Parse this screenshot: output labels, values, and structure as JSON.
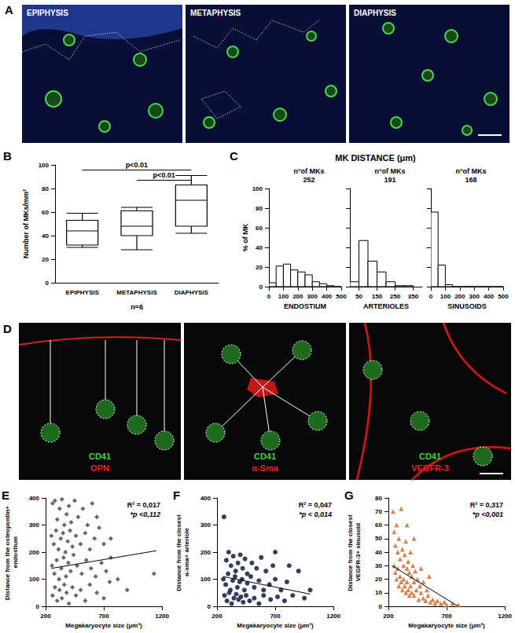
{
  "images": [
    {
      "panel": "A",
      "frames": [
        {
          "label": "EPIPHYSIS"
        },
        {
          "label": "METAPHYSIS"
        },
        {
          "label": "DIAPHYSIS"
        }
      ]
    },
    {
      "panel": "D",
      "frames": [
        {
          "label": "CD41",
          "stain": "OPN"
        },
        {
          "label": "CD41",
          "stain": "α-Sma"
        },
        {
          "label": "CD41",
          "stain": "VEGFR-3"
        }
      ]
    }
  ],
  "chart_data": [
    {
      "panel": "B",
      "type": "boxplot",
      "categories": [
        "EPIPHYSIS",
        "METAPHYSIS",
        "DIAPHYSIS"
      ],
      "values": [
        [
          30,
          32,
          44,
          53,
          59
        ],
        [
          28,
          40,
          48,
          61,
          64
        ],
        [
          42,
          48,
          70,
          83,
          91
        ]
      ],
      "color": "#000000",
      "y_label": "Number of MKs/mm²",
      "x_label": "n=6",
      "ylim": [
        0,
        100
      ],
      "yticks": [
        0,
        20,
        40,
        60,
        80,
        100
      ],
      "grid": false,
      "annotations": [
        {
          "text": "p<0.01",
          "from": "EPIPHYSIS",
          "to": "DIAPHYSIS",
          "y": 96
        },
        {
          "text": "p<0.01",
          "from": "METAPHYSIS",
          "to": "DIAPHYSIS",
          "y": 87
        }
      ]
    },
    {
      "panel": "C",
      "type": "histogram",
      "title": "MK DISTANCE (μm)",
      "y_label": "% of MK",
      "ylim": [
        0,
        100
      ],
      "yticks": [
        0,
        20,
        40,
        60,
        80,
        100
      ],
      "grid": false,
      "color": "#ffffff",
      "series": [
        {
          "name": "ENDOSTIUM",
          "count_label": "n°of MKs",
          "count": 252,
          "bins": [
            0,
            50,
            100,
            150,
            200,
            250,
            300,
            350,
            400,
            450,
            500
          ],
          "values": [
            4,
            21,
            23,
            17,
            15,
            12,
            5,
            3,
            1,
            0
          ],
          "xlim": [
            0,
            500
          ],
          "xticks": [
            0,
            100,
            200,
            300,
            400,
            500
          ]
        },
        {
          "name": "ARTERIOLES",
          "count_label": "n°of MKs",
          "count": 191,
          "bins": [
            0,
            50,
            100,
            150,
            200,
            250,
            300,
            350
          ],
          "values": [
            5,
            47,
            26,
            15,
            5,
            1,
            1
          ],
          "xlim": [
            0,
            400
          ],
          "xticks": [
            50,
            150,
            250,
            350
          ]
        },
        {
          "name": "SINUSOIDS",
          "count_label": "n°of MKs",
          "count": 168,
          "bins": [
            0,
            50,
            100,
            150,
            200,
            250,
            300,
            350,
            400,
            450,
            500
          ],
          "values": [
            76,
            22,
            2,
            0,
            0,
            0,
            0,
            0,
            0,
            0
          ],
          "xlim": [
            0,
            500
          ],
          "xticks": [
            0,
            100,
            200,
            300,
            400,
            500
          ]
        }
      ]
    },
    {
      "panel": "E",
      "type": "scatter",
      "marker": "diamond",
      "color": "#5a5a5a",
      "x_label": "Megakaryocyte size (μm²)",
      "y_label": "Distance from the osteopontin+ endostium",
      "xlim": [
        200,
        1200
      ],
      "xticks": [
        200,
        700,
        1200
      ],
      "ylim": [
        0,
        400
      ],
      "yticks": [
        0,
        100,
        200,
        300,
        400
      ],
      "grid": false,
      "annotations": [
        {
          "text": "R² = 0,017"
        },
        {
          "text": "*p <0,112"
        }
      ],
      "trend": {
        "x": [
          250,
          1150
        ],
        "y": [
          140,
          205
        ]
      },
      "x": [
        260,
        280,
        300,
        320,
        340,
        360,
        380,
        400,
        420,
        450,
        480,
        520,
        560,
        600,
        640,
        250,
        270,
        290,
        310,
        330,
        350,
        370,
        390,
        410,
        430,
        460,
        500,
        540,
        580,
        620,
        660,
        700,
        255,
        275,
        295,
        315,
        335,
        355,
        375,
        395,
        415,
        440,
        470,
        510,
        550,
        590,
        630,
        680,
        720,
        760,
        260,
        280,
        300,
        320,
        340,
        360,
        380,
        400,
        430,
        460,
        500,
        540,
        580,
        640,
        700,
        750,
        820,
        900,
        1130,
        760
      ],
      "values": [
        380,
        390,
        320,
        360,
        395,
        300,
        340,
        370,
        310,
        390,
        330,
        360,
        300,
        380,
        330,
        260,
        230,
        280,
        210,
        250,
        270,
        200,
        240,
        280,
        220,
        260,
        230,
        270,
        210,
        250,
        290,
        230,
        150,
        120,
        170,
        100,
        140,
        180,
        110,
        160,
        130,
        190,
        150,
        120,
        170,
        140,
        110,
        160,
        130,
        180,
        40,
        70,
        20,
        60,
        30,
        80,
        50,
        10,
        70,
        40,
        60,
        20,
        80,
        50,
        30,
        90,
        100,
        60,
        120,
        250
      ]
    },
    {
      "panel": "F",
      "type": "scatter",
      "marker": "circle",
      "color": "#1c2a4a",
      "x_label": "Megakaryocyte size (μm²)",
      "y_label": "Distance from the closest α-sma+ arteriole",
      "xlim": [
        200,
        1200
      ],
      "xticks": [
        200,
        700,
        1200
      ],
      "ylim": [
        0,
        400
      ],
      "yticks": [
        0,
        100,
        200,
        300,
        400
      ],
      "grid": false,
      "annotations": [
        {
          "text": "R² = 0,047"
        },
        {
          "text": "*p < 0,014"
        }
      ],
      "trend": {
        "x": [
          250,
          1000
        ],
        "y": [
          110,
          45
        ]
      },
      "x": [
        260,
        280,
        300,
        320,
        340,
        360,
        380,
        400,
        420,
        440,
        460,
        500,
        540,
        580,
        620,
        680,
        255,
        275,
        295,
        315,
        335,
        355,
        375,
        395,
        415,
        435,
        460,
        490,
        520,
        560,
        600,
        650,
        700,
        750,
        800,
        265,
        285,
        305,
        325,
        345,
        365,
        385,
        405,
        425,
        450,
        480,
        520,
        560,
        600,
        660,
        720,
        780,
        850,
        900,
        950,
        1000,
        820,
        700
      ],
      "values": [
        330,
        170,
        200,
        150,
        185,
        130,
        160,
        190,
        140,
        175,
        120,
        160,
        140,
        180,
        130,
        150,
        100,
        80,
        120,
        60,
        95,
        110,
        70,
        90,
        100,
        60,
        85,
        110,
        70,
        95,
        60,
        80,
        100,
        60,
        90,
        40,
        20,
        50,
        10,
        30,
        45,
        25,
        35,
        15,
        40,
        20,
        30,
        10,
        40,
        25,
        35,
        20,
        40,
        130,
        30,
        60,
        150,
        200
      ]
    },
    {
      "panel": "G",
      "type": "scatter",
      "marker": "triangle",
      "color": "#c87941",
      "x_label": "Megakaryocyte size (μm²)",
      "y_label": "Distance from the closest VEGFR-3+ sinusoid",
      "xlim": [
        200,
        1200
      ],
      "xticks": [
        200,
        700,
        1200
      ],
      "ylim": [
        0,
        80
      ],
      "yticks": [
        0,
        10,
        20,
        30,
        40,
        50,
        60,
        70,
        80
      ],
      "grid": false,
      "annotations": [
        {
          "text": "R² = 0,317"
        },
        {
          "text": "*p <0,001"
        }
      ],
      "trend": {
        "x": [
          230,
          800
        ],
        "y": [
          30,
          0
        ]
      },
      "x": [
        240,
        250,
        260,
        270,
        280,
        290,
        300,
        310,
        320,
        330,
        340,
        350,
        360,
        370,
        380,
        390,
        400,
        410,
        420,
        430,
        250,
        260,
        270,
        280,
        290,
        300,
        310,
        320,
        330,
        340,
        350,
        360,
        370,
        380,
        390,
        400,
        420,
        440,
        460,
        480,
        500,
        520,
        540,
        560,
        580,
        600,
        620,
        650,
        680,
        700,
        750,
        800,
        450,
        470,
        500,
        530,
        480,
        550,
        360,
        420
      ],
      "values": [
        70,
        55,
        45,
        60,
        40,
        50,
        35,
        72,
        42,
        30,
        38,
        48,
        28,
        33,
        25,
        40,
        22,
        30,
        18,
        26,
        30,
        25,
        20,
        28,
        15,
        22,
        18,
        12,
        20,
        15,
        10,
        18,
        12,
        8,
        15,
        10,
        8,
        12,
        5,
        10,
        6,
        4,
        8,
        3,
        5,
        2,
        4,
        2,
        3,
        1,
        2,
        1,
        20,
        15,
        18,
        12,
        28,
        22,
        60,
        50
      ]
    }
  ]
}
